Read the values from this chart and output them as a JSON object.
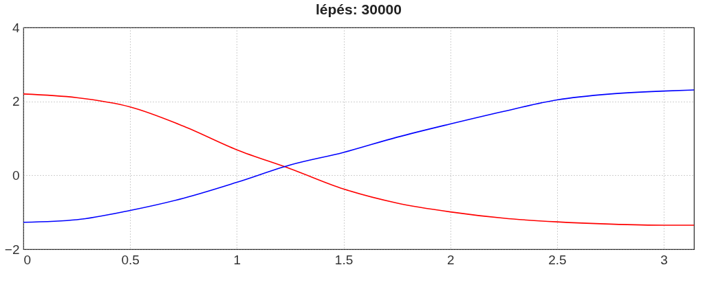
{
  "chart_data": {
    "type": "line",
    "title": "lépés: 30000",
    "x": [
      0,
      0.25,
      0.5,
      0.75,
      1,
      1.25,
      1.5,
      1.75,
      2,
      2.25,
      2.5,
      2.75,
      3,
      3.1416
    ],
    "series": [
      {
        "color": "#ff0000",
        "values": [
          2.2,
          2.1,
          1.85,
          1.33,
          0.69,
          0.18,
          -0.37,
          -0.75,
          -0.99,
          -1.16,
          -1.26,
          -1.32,
          -1.35,
          -1.35
        ]
      },
      {
        "color": "#0000ff",
        "values": [
          -1.27,
          -1.2,
          -0.95,
          -0.62,
          -0.19,
          0.28,
          0.62,
          1.03,
          1.39,
          1.73,
          2.04,
          2.2,
          2.28,
          2.31
        ]
      }
    ],
    "xlim": [
      0,
      3.1416
    ],
    "xticks": [
      0,
      0.5,
      1,
      1.5,
      2,
      2.5,
      3
    ],
    "ylim": [
      -2,
      4
    ],
    "yticks": [
      -2,
      0,
      2,
      4
    ],
    "grid": true,
    "line_style": "solid",
    "marker": "none"
  }
}
